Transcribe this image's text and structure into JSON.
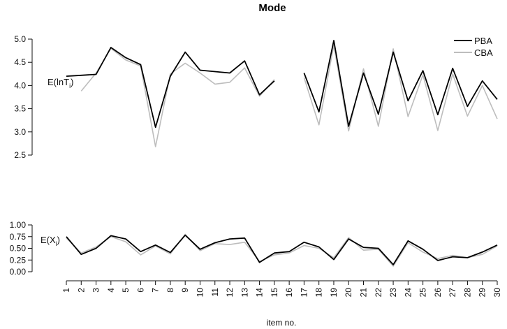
{
  "chart_data": {
    "type": "line",
    "title": "Mode",
    "xlabel": "item no.",
    "x": [
      1,
      2,
      3,
      4,
      5,
      6,
      7,
      8,
      9,
      10,
      11,
      12,
      13,
      14,
      15,
      16,
      17,
      18,
      19,
      20,
      21,
      22,
      23,
      24,
      25,
      26,
      27,
      28,
      29,
      30
    ],
    "legend": {
      "position": "top-right",
      "entries": [
        {
          "name": "PBA",
          "color": "#000000"
        },
        {
          "name": "CBA",
          "color": "#bdbdbd"
        }
      ]
    },
    "panels": [
      {
        "id": "top",
        "label_main": "E(lnT",
        "label_sub": "i",
        "label_close": ")",
        "ylim": [
          2.5,
          5.0
        ],
        "yticks": [
          "2.5",
          "3.0",
          "3.5",
          "4.0",
          "4.5",
          "5.0"
        ],
        "series": [
          {
            "name": "PBA",
            "color": "#000000",
            "values": [
              4.2,
              4.22,
              4.24,
              4.82,
              4.6,
              4.45,
              3.1,
              4.2,
              4.72,
              4.33,
              4.3,
              4.27,
              4.53,
              3.8,
              4.1,
              null,
              4.27,
              3.43,
              4.97,
              3.12,
              4.27,
              3.38,
              4.72,
              3.67,
              4.32,
              3.37,
              4.37,
              3.55,
              4.1,
              3.7
            ]
          },
          {
            "name": "CBA",
            "color": "#bdbdbd",
            "values": [
              null,
              3.88,
              4.27,
              4.8,
              4.55,
              4.42,
              2.68,
              4.25,
              4.48,
              4.27,
              4.03,
              4.07,
              4.38,
              3.77,
              4.13,
              null,
              4.17,
              3.15,
              4.87,
              3.02,
              4.36,
              3.12,
              4.79,
              3.33,
              4.23,
              3.03,
              4.25,
              3.34,
              4.0,
              3.28
            ]
          }
        ]
      },
      {
        "id": "bottom",
        "label_main": "E(X",
        "label_sub": "i",
        "label_close": ")",
        "ylim": [
          0.0,
          1.0
        ],
        "yticks": [
          "0.00",
          "0.25",
          "0.50",
          "0.75",
          "1.00"
        ],
        "series": [
          {
            "name": "PBA",
            "color": "#000000",
            "values": [
              0.75,
              0.37,
              0.5,
              0.77,
              0.7,
              0.43,
              0.57,
              0.41,
              0.78,
              0.48,
              0.62,
              0.7,
              0.72,
              0.2,
              0.4,
              0.43,
              0.63,
              0.53,
              0.26,
              0.7,
              0.52,
              0.5,
              0.15,
              0.66,
              0.48,
              0.24,
              0.32,
              0.3,
              0.42,
              0.57
            ]
          },
          {
            "name": "CBA",
            "color": "#bdbdbd",
            "values": [
              0.72,
              0.4,
              0.53,
              0.75,
              0.64,
              0.36,
              0.55,
              0.38,
              0.8,
              0.45,
              0.6,
              0.58,
              0.63,
              0.22,
              0.36,
              0.4,
              0.56,
              0.5,
              0.3,
              0.73,
              0.46,
              0.48,
              0.12,
              0.62,
              0.42,
              0.28,
              0.35,
              0.3,
              0.37,
              0.55
            ]
          }
        ]
      }
    ]
  }
}
